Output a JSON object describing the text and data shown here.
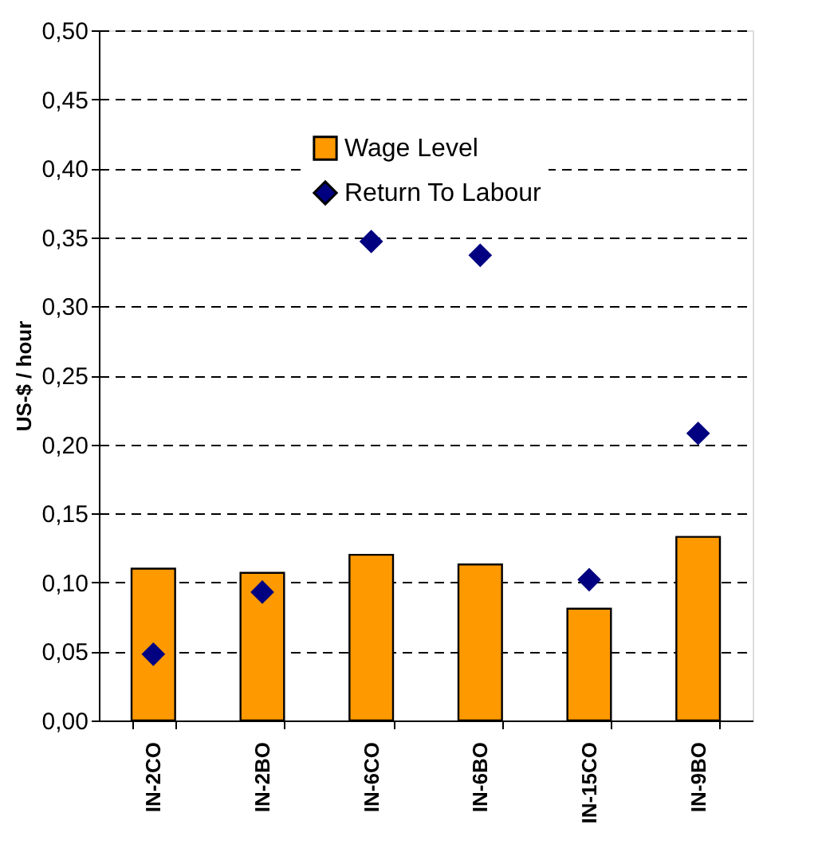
{
  "chart_data": {
    "type": "bar",
    "ylabel": "US-$ / hour",
    "categories": [
      "IN-2CO",
      "IN-2BO",
      "IN-6CO",
      "IN-6BO",
      "IN-15CO",
      "IN-9BO"
    ],
    "series": [
      {
        "name": "Wage Level",
        "color": "#ff9900",
        "values": [
          0.11,
          0.107,
          0.12,
          0.113,
          0.081,
          0.133
        ]
      },
      {
        "name": "Return To Labour",
        "type": "scatter",
        "color": "#000080",
        "marker": "diamond",
        "values": [
          0.048,
          0.093,
          0.347,
          0.337,
          0.102,
          0.208
        ]
      }
    ],
    "ylim": [
      0,
      0.5
    ],
    "yticks": [
      {
        "value": 0,
        "label": "0,00"
      },
      {
        "value": 0.05,
        "label": "0,05"
      },
      {
        "value": 0.1,
        "label": "0,10"
      },
      {
        "value": 0.15,
        "label": "0,15"
      },
      {
        "value": 0.2,
        "label": "0,20"
      },
      {
        "value": 0.25,
        "label": "0,25"
      },
      {
        "value": 0.3,
        "label": "0,30"
      },
      {
        "value": 0.35,
        "label": "0,35"
      },
      {
        "value": 0.4,
        "label": "0,40"
      },
      {
        "value": 0.45,
        "label": "0,45"
      },
      {
        "value": 0.5,
        "label": "0,50"
      }
    ],
    "grid": "y",
    "legend": "top left"
  }
}
